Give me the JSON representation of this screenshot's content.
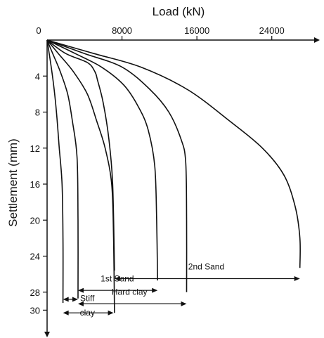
{
  "chart_data": {
    "type": "line",
    "xlabel": "Load (kN)",
    "ylabel": "Settlement (mm)",
    "xlim": [
      0,
      28000
    ],
    "ylim": [
      0,
      32
    ],
    "x_axis_position": "top",
    "y_axis_inverted": true,
    "x_ticks": [
      0,
      8000,
      16000,
      24000
    ],
    "x_tick_labels": [
      "0",
      "8000",
      "16000",
      "24000"
    ],
    "y_ticks": [
      4,
      8,
      12,
      16,
      20,
      24,
      28,
      30
    ],
    "y_tick_labels": [
      "4",
      "8",
      "12",
      "16",
      "20",
      "24",
      "28",
      "30"
    ],
    "grid": false,
    "legend": "none",
    "series": [
      {
        "x": [
          0,
          300,
          700,
          1000,
          1300,
          1600,
          1700,
          1700
        ],
        "y": [
          0,
          2,
          5,
          8,
          12,
          16,
          22,
          29.2
        ]
      },
      {
        "x": [
          0,
          600,
          1400,
          2200,
          2700,
          3200,
          3300,
          3300
        ],
        "y": [
          0,
          1.5,
          3.5,
          6,
          9,
          13,
          20,
          28.7
        ]
      },
      {
        "x": [
          0,
          1200,
          2800,
          4300,
          5300,
          6200,
          6900,
          7100,
          7200
        ],
        "y": [
          0,
          1.5,
          3.5,
          6,
          9,
          12,
          16,
          22,
          30.3
        ]
      },
      {
        "x": [
          0,
          2000,
          4300,
          5100,
          5400,
          6000,
          6600,
          7000,
          7200
        ],
        "y": [
          0,
          1.5,
          2.5,
          3.5,
          4.5,
          7,
          11,
          16,
          25.6
        ]
      },
      {
        "x": [
          0,
          3000,
          5800,
          8200,
          9800,
          10800,
          11500,
          11700,
          11800
        ],
        "y": [
          0,
          1.5,
          3,
          5,
          7.5,
          10,
          14,
          20,
          26.7
        ]
      },
      {
        "x": [
          0,
          4000,
          8000,
          11000,
          13000,
          14300,
          14800,
          14900,
          14900
        ],
        "y": [
          0,
          1.5,
          3,
          5.5,
          8,
          11,
          13.5,
          20,
          28
        ]
      },
      {
        "x": [
          0,
          5000,
          10000,
          15000,
          19500,
          23000,
          25300,
          26500,
          27000,
          27000
        ],
        "y": [
          0,
          1.5,
          3,
          5.5,
          9,
          12,
          15,
          18.5,
          22,
          25.3
        ]
      }
    ],
    "annotations": [
      {
        "text": "2nd Sand",
        "x_range": [
          7200,
          27000
        ],
        "y": 25.5,
        "label_x": 17000
      },
      {
        "text": "1st Sand",
        "x_range": [
          3300,
          11800
        ],
        "y": 26.8,
        "label_x": 7500
      },
      {
        "text": "Hard clay",
        "x_range": [
          3300,
          14900
        ],
        "y": 28.3,
        "label_x": 8800
      },
      {
        "text": "Stiff",
        "x_range": [
          1700,
          7100
        ],
        "y": 29.0,
        "label_x": 4300
      },
      {
        "text": "clay",
        "x_range": [
          1700,
          7100
        ],
        "y": 30.6,
        "label_x": 4300
      }
    ],
    "annotation_lines": [
      {
        "x_range": [
          3300,
          11800
        ],
        "y": 27.8
      },
      {
        "x_range": [
          1700,
          3300
        ],
        "y": 28.8
      },
      {
        "x_range": [
          3300,
          14900
        ],
        "y": 29.3
      },
      {
        "x_range": [
          1700,
          7100
        ],
        "y": 30.3
      }
    ]
  }
}
